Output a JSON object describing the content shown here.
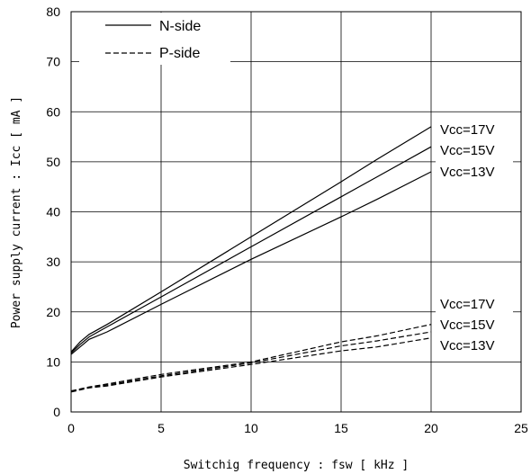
{
  "chart_data": {
    "type": "line",
    "xlabel": "Switchig frequency : fsw [ kHz ]",
    "ylabel": "Power supply current : Icc [ mA ]",
    "xlim": [
      0,
      25
    ],
    "ylim": [
      0,
      80
    ],
    "xticks": [
      "0",
      "5",
      "10",
      "15",
      "20",
      "25"
    ],
    "yticks": [
      "0",
      "10",
      "20",
      "30",
      "40",
      "50",
      "60",
      "70",
      "80"
    ],
    "grid": true,
    "legend_position": "top-left",
    "legend": [
      {
        "label": "N-side",
        "style": "solid"
      },
      {
        "label": "P-side",
        "style": "dashed"
      }
    ],
    "series": [
      {
        "group": "N-side",
        "annotation": "Vcc=17V",
        "style": "solid",
        "x": [
          0,
          0.5,
          1,
          2,
          5,
          10,
          15,
          17,
          20
        ],
        "y": [
          12,
          14,
          15.5,
          17.5,
          24,
          35,
          46,
          50.5,
          57
        ]
      },
      {
        "group": "N-side",
        "annotation": "Vcc=15V",
        "style": "solid",
        "x": [
          0,
          0.5,
          1,
          2,
          5,
          10,
          15,
          17,
          20
        ],
        "y": [
          11.8,
          13.5,
          15,
          17,
          23,
          33,
          43,
          47,
          53
        ]
      },
      {
        "group": "N-side",
        "annotation": "Vcc=13V",
        "style": "solid",
        "x": [
          0,
          0.5,
          1,
          2,
          5,
          10,
          15,
          17,
          20
        ],
        "y": [
          11.5,
          13,
          14.5,
          16,
          21.5,
          30.5,
          39,
          42.5,
          48
        ]
      },
      {
        "group": "P-side",
        "annotation": "Vcc=17V",
        "style": "dashed",
        "x": [
          0,
          1,
          2,
          5,
          10,
          15,
          17,
          20
        ],
        "y": [
          4.2,
          5,
          5.6,
          7.5,
          10,
          14,
          15.2,
          17.5
        ]
      },
      {
        "group": "P-side",
        "annotation": "Vcc=15V",
        "style": "dashed",
        "x": [
          0,
          1,
          2,
          5,
          10,
          15,
          17,
          20
        ],
        "y": [
          4.1,
          4.9,
          5.4,
          7.2,
          9.8,
          13.2,
          14.2,
          16
        ]
      },
      {
        "group": "P-side",
        "annotation": "Vcc=13V",
        "style": "dashed",
        "x": [
          0,
          1,
          2,
          5,
          10,
          15,
          17,
          20
        ],
        "y": [
          4,
          4.8,
          5.2,
          7,
          9.5,
          12.2,
          13,
          14.8
        ]
      }
    ],
    "annotations": {
      "n_side": [
        "Vcc=17V",
        "Vcc=15V",
        "Vcc=13V"
      ],
      "p_side": [
        "Vcc=17V",
        "Vcc=15V",
        "Vcc=13V"
      ]
    }
  }
}
